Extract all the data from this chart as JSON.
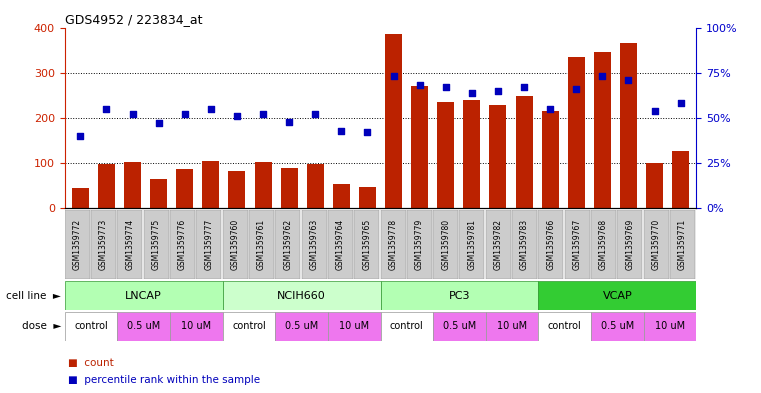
{
  "title": "GDS4952 / 223834_at",
  "samples": [
    "GSM1359772",
    "GSM1359773",
    "GSM1359774",
    "GSM1359775",
    "GSM1359776",
    "GSM1359777",
    "GSM1359760",
    "GSM1359761",
    "GSM1359762",
    "GSM1359763",
    "GSM1359764",
    "GSM1359765",
    "GSM1359778",
    "GSM1359779",
    "GSM1359780",
    "GSM1359781",
    "GSM1359782",
    "GSM1359783",
    "GSM1359766",
    "GSM1359767",
    "GSM1359768",
    "GSM1359769",
    "GSM1359770",
    "GSM1359771"
  ],
  "counts": [
    45,
    97,
    102,
    65,
    88,
    105,
    82,
    103,
    90,
    97,
    53,
    48,
    385,
    270,
    235,
    240,
    228,
    248,
    215,
    335,
    345,
    365,
    100,
    127
  ],
  "percentile_ranks": [
    40,
    55,
    52,
    47,
    52,
    55,
    51,
    52,
    48,
    52,
    43,
    42,
    73,
    68,
    67,
    64,
    65,
    67,
    55,
    66,
    73,
    71,
    54,
    58
  ],
  "cell_lines": [
    {
      "name": "LNCAP",
      "start": 0,
      "end": 6,
      "color": "#b3ffb3"
    },
    {
      "name": "NCIH660",
      "start": 6,
      "end": 12,
      "color": "#ccffcc"
    },
    {
      "name": "PC3",
      "start": 12,
      "end": 18,
      "color": "#b3ffb3"
    },
    {
      "name": "VCAP",
      "start": 18,
      "end": 24,
      "color": "#33cc33"
    }
  ],
  "doses": [
    {
      "label": "control",
      "start": 0,
      "end": 2,
      "color": "#ffffff"
    },
    {
      "label": "0.5 uM",
      "start": 2,
      "end": 4,
      "color": "#ee77ee"
    },
    {
      "label": "10 uM",
      "start": 4,
      "end": 6,
      "color": "#ee77ee"
    },
    {
      "label": "control",
      "start": 6,
      "end": 8,
      "color": "#ffffff"
    },
    {
      "label": "0.5 uM",
      "start": 8,
      "end": 10,
      "color": "#ee77ee"
    },
    {
      "label": "10 uM",
      "start": 10,
      "end": 12,
      "color": "#ee77ee"
    },
    {
      "label": "control",
      "start": 12,
      "end": 14,
      "color": "#ffffff"
    },
    {
      "label": "0.5 uM",
      "start": 14,
      "end": 16,
      "color": "#ee77ee"
    },
    {
      "label": "10 uM",
      "start": 16,
      "end": 18,
      "color": "#ee77ee"
    },
    {
      "label": "control",
      "start": 18,
      "end": 20,
      "color": "#ffffff"
    },
    {
      "label": "0.5 uM",
      "start": 20,
      "end": 22,
      "color": "#ee77ee"
    },
    {
      "label": "10 uM",
      "start": 22,
      "end": 24,
      "color": "#ee77ee"
    }
  ],
  "bar_color": "#bb2200",
  "dot_color": "#0000bb",
  "ylim_left": [
    0,
    400
  ],
  "ylim_right": [
    0,
    100
  ],
  "yticks_left": [
    0,
    100,
    200,
    300,
    400
  ],
  "yticks_right": [
    0,
    25,
    50,
    75,
    100
  ],
  "yticklabels_right": [
    "0%",
    "25%",
    "50%",
    "75%",
    "100%"
  ],
  "legend_count_label": "count",
  "legend_pct_label": "percentile rank within the sample",
  "cell_line_row_label": "cell line",
  "dose_row_label": "dose",
  "bg_color": "#ffffff",
  "axis_color_left": "#cc2200",
  "axis_color_right": "#0000cc",
  "xtick_bg_color": "#cccccc",
  "cell_line_border_color": "#339933",
  "dose_border_color": "#999999"
}
